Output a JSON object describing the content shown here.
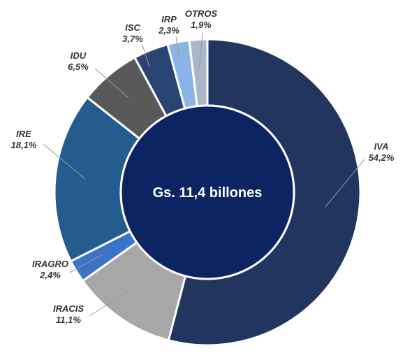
{
  "chart_data": {
    "type": "pie",
    "center_label": "Gs. 11,4 billones",
    "slices": [
      {
        "name": "IVA",
        "value": 54.2,
        "label": "54,2%",
        "color": "#22355f"
      },
      {
        "name": "IRACIS",
        "value": 11.1,
        "label": "11,1%",
        "color": "#a7a7a7"
      },
      {
        "name": "IRAGRO",
        "value": 2.4,
        "label": "2,4%",
        "color": "#3b73c9"
      },
      {
        "name": "IRE",
        "value": 18.1,
        "label": "18,1%",
        "color": "#245c8f"
      },
      {
        "name": "IDU",
        "value": 6.5,
        "label": "6,5%",
        "color": "#595959"
      },
      {
        "name": "ISC",
        "value": 3.7,
        "label": "3,7%",
        "color": "#274473"
      },
      {
        "name": "IRP",
        "value": 2.3,
        "label": "2,3%",
        "color": "#8ab4e5"
      },
      {
        "name": "OTROS",
        "value": 1.9,
        "label": "1,9%",
        "color": "#aab7c9"
      }
    ],
    "center_color": "#0c2461"
  }
}
